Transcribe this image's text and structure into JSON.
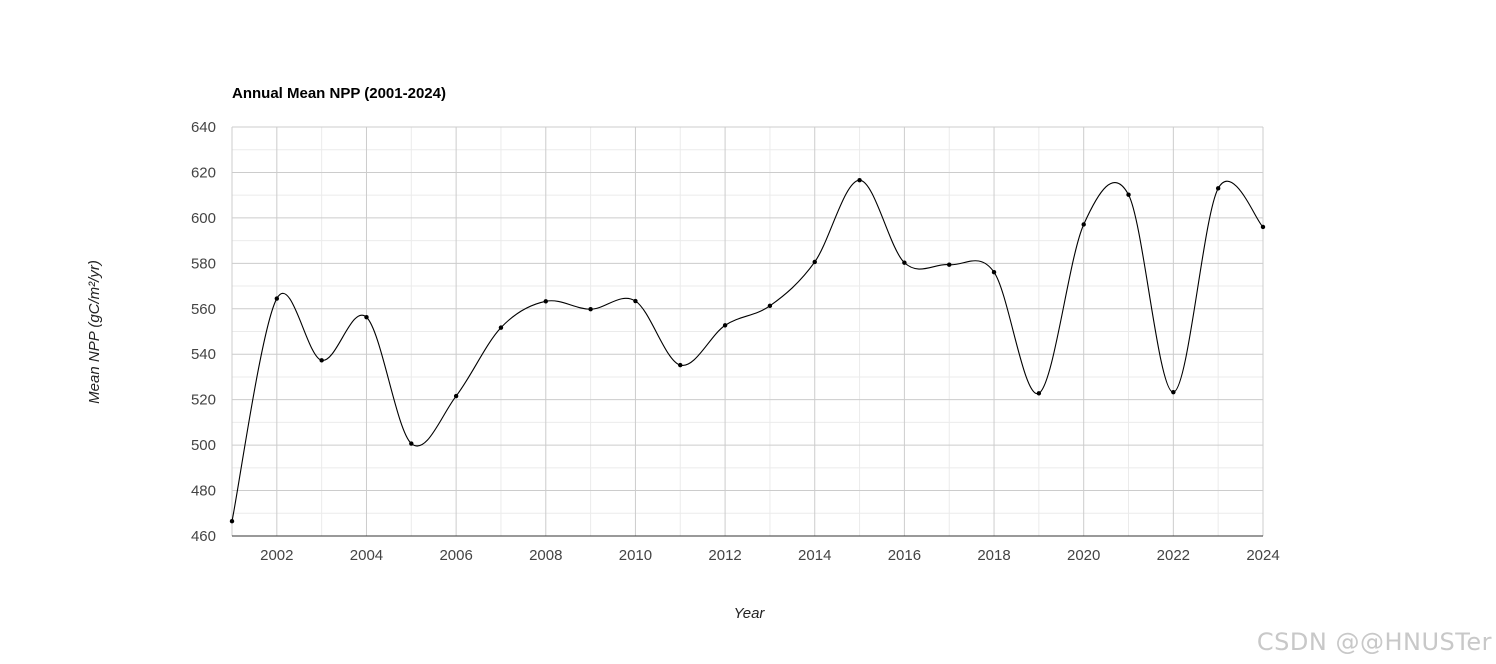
{
  "chart_data": {
    "type": "line",
    "title": "Annual Mean NPP (2001-2024)",
    "xlabel": "Year",
    "ylabel": "Mean NPP (gC/m²/yr)",
    "xlim": [
      2001,
      2024
    ],
    "ylim": [
      460,
      640
    ],
    "y_ticks": [
      460,
      480,
      500,
      520,
      540,
      560,
      580,
      600,
      620,
      640
    ],
    "x_ticks": [
      2002,
      2004,
      2006,
      2008,
      2010,
      2012,
      2014,
      2016,
      2018,
      2020,
      2022,
      2024
    ],
    "grid": true,
    "smooth": true,
    "line_color": "#000000",
    "series": [
      {
        "x": [
          2001,
          2002,
          2003,
          2004,
          2005,
          2006,
          2007,
          2008,
          2009,
          2010,
          2011,
          2012,
          2013,
          2014,
          2015,
          2016,
          2017,
          2018,
          2019,
          2020,
          2021,
          2022,
          2023,
          2024
        ],
        "values": [
          466.5,
          564.5,
          537.3,
          556.3,
          500.7,
          521.6,
          551.7,
          563.3,
          559.8,
          563.4,
          535.2,
          552.7,
          561.3,
          580.6,
          616.6,
          580.3,
          579.4,
          576.1,
          522.8,
          597.1,
          610.2,
          523.3,
          613.0,
          596.0
        ]
      }
    ]
  },
  "watermark": "CSDN @@HNUSTer"
}
